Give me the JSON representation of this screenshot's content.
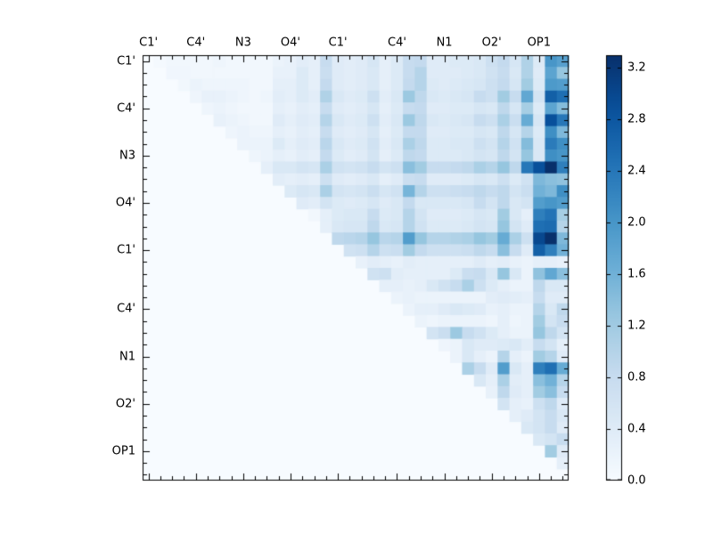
{
  "figure": {
    "background": "#ffffff",
    "plot_bg": "#f7fbff",
    "axis_color": "#000000"
  },
  "chart_data": {
    "type": "heatmap",
    "title": "",
    "xlabel": "",
    "ylabel": "",
    "matrix_size": 36,
    "colormap": "Blues",
    "vmin": 0.0,
    "vmax": 3.3,
    "tick_cells": [
      0,
      4,
      8,
      12,
      16,
      21,
      25,
      29,
      33
    ],
    "col_tick_labels": [
      "C1'",
      "C4'",
      "N3",
      "O4'",
      "C1'",
      "C4'",
      "N1",
      "O2'",
      "OP1"
    ],
    "row_tick_labels": [
      "C1'",
      "C4'",
      "N3",
      "O4'",
      "C1'",
      "C4'",
      "N1",
      "O2'",
      "OP1"
    ],
    "colorbar": {
      "tick_values": [
        0.0,
        0.4,
        0.8,
        1.2,
        1.6,
        2.0,
        2.4,
        2.8,
        3.2
      ],
      "tick_labels": [
        "0.0",
        "0.4",
        "0.8",
        "1.2",
        "1.6",
        "2.0",
        "2.4",
        "2.8",
        "3.2"
      ]
    },
    "values": [
      [
        0,
        0.05,
        0.1,
        0.1,
        0.1,
        0.1,
        0.15,
        0.1,
        0.1,
        0.1,
        0.1,
        0.2,
        0.25,
        0.35,
        0.3,
        0.8,
        0.4,
        0.35,
        0.4,
        0.55,
        0.3,
        0.45,
        0.8,
        0.85,
        0.4,
        0.4,
        0.45,
        0.45,
        0.5,
        0.7,
        0.85,
        0.55,
        1.05,
        0.45,
        2.0,
        1.85
      ],
      [
        0,
        0,
        0.12,
        0.12,
        0.1,
        0.1,
        0.1,
        0.1,
        0.1,
        0.1,
        0.1,
        0.25,
        0.25,
        0.45,
        0.3,
        0.75,
        0.4,
        0.35,
        0.4,
        0.5,
        0.3,
        0.45,
        0.8,
        1.0,
        0.4,
        0.4,
        0.4,
        0.45,
        0.5,
        0.65,
        0.8,
        0.5,
        1.05,
        0.4,
        1.8,
        1.3
      ],
      [
        0,
        0,
        0,
        0.1,
        0.2,
        0.15,
        0.15,
        0.15,
        0.15,
        0.1,
        0.1,
        0.3,
        0.3,
        0.45,
        0.3,
        0.85,
        0.4,
        0.35,
        0.4,
        0.5,
        0.3,
        0.45,
        0.85,
        1.0,
        0.45,
        0.4,
        0.45,
        0.5,
        0.55,
        0.7,
        0.85,
        0.55,
        1.2,
        0.45,
        1.95,
        1.9
      ],
      [
        0,
        0,
        0,
        0,
        0.15,
        0.25,
        0.25,
        0.2,
        0.15,
        0.1,
        0.15,
        0.35,
        0.3,
        0.45,
        0.35,
        1.05,
        0.5,
        0.4,
        0.45,
        0.7,
        0.35,
        0.5,
        1.25,
        0.9,
        0.5,
        0.45,
        0.5,
        0.55,
        0.8,
        0.7,
        1.2,
        0.8,
        1.75,
        0.6,
        2.7,
        2.5
      ],
      [
        0,
        0,
        0,
        0,
        0,
        0.15,
        0.2,
        0.15,
        0.1,
        0.1,
        0.1,
        0.3,
        0.25,
        0.35,
        0.3,
        0.8,
        0.4,
        0.35,
        0.4,
        0.55,
        0.3,
        0.45,
        0.8,
        0.85,
        0.4,
        0.4,
        0.45,
        0.45,
        0.55,
        0.5,
        0.9,
        0.55,
        1.15,
        0.45,
        1.8,
        1.45
      ],
      [
        0,
        0,
        0,
        0,
        0,
        0,
        0.25,
        0.2,
        0.15,
        0.1,
        0.1,
        0.4,
        0.3,
        0.4,
        0.35,
        1.0,
        0.5,
        0.4,
        0.45,
        0.7,
        0.35,
        0.5,
        1.25,
        0.9,
        0.5,
        0.45,
        0.5,
        0.55,
        0.8,
        0.7,
        1.1,
        0.75,
        1.7,
        0.55,
        2.9,
        2.4
      ],
      [
        0,
        0,
        0,
        0,
        0,
        0,
        0,
        0.15,
        0.2,
        0.15,
        0.15,
        0.3,
        0.25,
        0.35,
        0.3,
        0.8,
        0.4,
        0.35,
        0.4,
        0.55,
        0.3,
        0.45,
        0.85,
        0.85,
        0.4,
        0.4,
        0.45,
        0.45,
        0.55,
        0.5,
        0.9,
        0.55,
        1.0,
        0.45,
        2.1,
        1.5
      ],
      [
        0,
        0,
        0,
        0,
        0,
        0,
        0,
        0,
        0.2,
        0.2,
        0.2,
        0.45,
        0.3,
        0.4,
        0.35,
        0.95,
        0.5,
        0.4,
        0.45,
        0.65,
        0.35,
        0.5,
        1.1,
        0.9,
        0.45,
        0.45,
        0.5,
        0.5,
        0.7,
        0.6,
        1.0,
        0.65,
        1.45,
        0.5,
        2.35,
        2.1
      ],
      [
        0,
        0,
        0,
        0,
        0,
        0,
        0,
        0,
        0,
        0.15,
        0.2,
        0.3,
        0.25,
        0.35,
        0.3,
        0.85,
        0.45,
        0.35,
        0.4,
        0.6,
        0.3,
        0.45,
        0.9,
        0.85,
        0.45,
        0.45,
        0.45,
        0.5,
        0.6,
        0.55,
        0.9,
        0.6,
        1.3,
        0.5,
        2.1,
        2.0
      ],
      [
        0,
        0,
        0,
        0,
        0,
        0,
        0,
        0,
        0,
        0,
        0.3,
        0.5,
        0.5,
        0.6,
        0.55,
        1.1,
        0.65,
        0.6,
        0.65,
        0.8,
        0.6,
        0.7,
        1.4,
        1.2,
        0.8,
        0.8,
        0.85,
        0.9,
        1.1,
        1.0,
        1.3,
        0.9,
        2.4,
        2.9,
        3.3,
        2.3
      ],
      [
        0,
        0,
        0,
        0,
        0,
        0,
        0,
        0,
        0,
        0,
        0,
        0.35,
        0.3,
        0.35,
        0.3,
        0.7,
        0.4,
        0.35,
        0.4,
        0.5,
        0.3,
        0.4,
        0.75,
        0.8,
        0.4,
        0.4,
        0.4,
        0.45,
        0.55,
        0.5,
        0.7,
        0.45,
        0.65,
        1.5,
        1.4,
        1.35
      ],
      [
        0,
        0,
        0,
        0,
        0,
        0,
        0,
        0,
        0,
        0,
        0,
        0,
        0.45,
        0.55,
        0.5,
        1.1,
        0.6,
        0.55,
        0.6,
        0.75,
        0.55,
        0.65,
        1.55,
        1.0,
        0.7,
        0.7,
        0.75,
        0.8,
        0.9,
        0.8,
        0.9,
        0.6,
        0.75,
        1.6,
        1.5,
        2.1
      ],
      [
        0,
        0,
        0,
        0,
        0,
        0,
        0,
        0,
        0,
        0,
        0,
        0,
        0,
        0.4,
        0.35,
        0.6,
        0.45,
        0.4,
        0.45,
        0.55,
        0.4,
        0.5,
        0.85,
        0.5,
        0.5,
        0.5,
        0.5,
        0.55,
        0.8,
        0.6,
        0.9,
        0.5,
        0.6,
        1.9,
        2.0,
        1.9
      ],
      [
        0,
        0,
        0,
        0,
        0,
        0,
        0,
        0,
        0,
        0,
        0,
        0,
        0,
        0,
        0.1,
        0.3,
        0.45,
        0.5,
        0.5,
        0.8,
        0.45,
        0.5,
        1.0,
        0.6,
        0.4,
        0.4,
        0.4,
        0.45,
        0.55,
        0.5,
        1.2,
        0.5,
        0.3,
        2.3,
        2.45,
        1.15
      ],
      [
        0,
        0,
        0,
        0,
        0,
        0,
        0,
        0,
        0,
        0,
        0,
        0,
        0,
        0,
        0,
        0.3,
        0.5,
        0.55,
        0.55,
        0.9,
        0.5,
        0.55,
        1.0,
        0.65,
        0.45,
        0.45,
        0.45,
        0.5,
        0.6,
        0.55,
        1.3,
        0.6,
        0.4,
        2.5,
        2.55,
        1.0
      ],
      [
        0,
        0,
        0,
        0,
        0,
        0,
        0,
        0,
        0,
        0,
        0,
        0,
        0,
        0,
        0,
        0,
        0.9,
        0.95,
        1.0,
        1.3,
        0.95,
        1.0,
        1.9,
        1.3,
        1.0,
        1.0,
        1.05,
        1.1,
        1.3,
        1.2,
        1.7,
        1.1,
        0.7,
        3.0,
        3.3,
        1.5
      ],
      [
        0,
        0,
        0,
        0,
        0,
        0,
        0,
        0,
        0,
        0,
        0,
        0,
        0,
        0,
        0,
        0,
        0,
        0.65,
        0.7,
        1.0,
        0.7,
        0.75,
        1.2,
        0.85,
        0.7,
        0.7,
        0.7,
        0.75,
        0.9,
        0.8,
        1.4,
        0.8,
        0.4,
        2.7,
        2.3,
        1.6
      ],
      [
        0,
        0,
        0,
        0,
        0,
        0,
        0,
        0,
        0,
        0,
        0,
        0,
        0,
        0,
        0,
        0,
        0,
        0,
        0.25,
        0.35,
        0.3,
        0.25,
        0.35,
        0.3,
        0.3,
        0.3,
        0.3,
        0.3,
        0.4,
        0.3,
        0.35,
        0.25,
        0.2,
        0.3,
        0.3,
        0.25
      ],
      [
        0,
        0,
        0,
        0,
        0,
        0,
        0,
        0,
        0,
        0,
        0,
        0,
        0,
        0,
        0,
        0,
        0,
        0,
        0,
        0.65,
        0.7,
        0.35,
        0.3,
        0.3,
        0.3,
        0.3,
        0.45,
        0.75,
        0.8,
        0.5,
        1.3,
        0.5,
        0.2,
        1.35,
        1.75,
        1.4
      ],
      [
        0,
        0,
        0,
        0,
        0,
        0,
        0,
        0,
        0,
        0,
        0,
        0,
        0,
        0,
        0,
        0,
        0,
        0,
        0,
        0,
        0.3,
        0.3,
        0.25,
        0.3,
        0.5,
        0.65,
        0.8,
        1.1,
        0.7,
        0.45,
        0.3,
        0.2,
        0.2,
        0.9,
        0.5,
        0.5
      ],
      [
        0,
        0,
        0,
        0,
        0,
        0,
        0,
        0,
        0,
        0,
        0,
        0,
        0,
        0,
        0,
        0,
        0,
        0,
        0,
        0,
        0,
        0.2,
        0.25,
        0.2,
        0.2,
        0.2,
        0.2,
        0.2,
        0.2,
        0.35,
        0.4,
        0.35,
        0.3,
        0.8,
        0.4,
        0.4
      ],
      [
        0,
        0,
        0,
        0,
        0,
        0,
        0,
        0,
        0,
        0,
        0,
        0,
        0,
        0,
        0,
        0,
        0,
        0,
        0,
        0,
        0,
        0,
        0.2,
        0.3,
        0.3,
        0.4,
        0.5,
        0.45,
        0.4,
        0.25,
        0.3,
        0.2,
        0.2,
        1.0,
        0.5,
        0.9
      ],
      [
        0,
        0,
        0,
        0,
        0,
        0,
        0,
        0,
        0,
        0,
        0,
        0,
        0,
        0,
        0,
        0,
        0,
        0,
        0,
        0,
        0,
        0,
        0,
        0.2,
        0.15,
        0.2,
        0.2,
        0.2,
        0.2,
        0.15,
        0.3,
        0.15,
        0.2,
        1.2,
        0.6,
        0.8
      ],
      [
        0,
        0,
        0,
        0,
        0,
        0,
        0,
        0,
        0,
        0,
        0,
        0,
        0,
        0,
        0,
        0,
        0,
        0,
        0,
        0,
        0,
        0,
        0,
        0,
        0.6,
        0.75,
        1.25,
        0.8,
        0.65,
        0.45,
        0.3,
        0.2,
        0.2,
        1.3,
        0.9,
        0.6
      ],
      [
        0,
        0,
        0,
        0,
        0,
        0,
        0,
        0,
        0,
        0,
        0,
        0,
        0,
        0,
        0,
        0,
        0,
        0,
        0,
        0,
        0,
        0,
        0,
        0,
        0,
        0.15,
        0.2,
        0.5,
        0.4,
        0.4,
        0.45,
        0.5,
        0.35,
        0.8,
        0.6,
        0.3
      ],
      [
        0,
        0,
        0,
        0,
        0,
        0,
        0,
        0,
        0,
        0,
        0,
        0,
        0,
        0,
        0,
        0,
        0,
        0,
        0,
        0,
        0,
        0,
        0,
        0,
        0,
        0,
        0.2,
        0.5,
        0.3,
        0.2,
        1.0,
        0.3,
        0.2,
        1.2,
        1.0,
        0.4
      ],
      [
        0,
        0,
        0,
        0,
        0,
        0,
        0,
        0,
        0,
        0,
        0,
        0,
        0,
        0,
        0,
        0,
        0,
        0,
        0,
        0,
        0,
        0,
        0,
        0,
        0,
        0,
        0,
        1.1,
        0.8,
        0.4,
        1.9,
        0.5,
        0.3,
        2.3,
        2.5,
        1.7
      ],
      [
        0,
        0,
        0,
        0,
        0,
        0,
        0,
        0,
        0,
        0,
        0,
        0,
        0,
        0,
        0,
        0,
        0,
        0,
        0,
        0,
        0,
        0,
        0,
        0,
        0,
        0,
        0,
        0,
        0.5,
        0.3,
        1.1,
        0.35,
        0.3,
        1.4,
        1.6,
        1.0
      ],
      [
        0,
        0,
        0,
        0,
        0,
        0,
        0,
        0,
        0,
        0,
        0,
        0,
        0,
        0,
        0,
        0,
        0,
        0,
        0,
        0,
        0,
        0,
        0,
        0,
        0,
        0,
        0,
        0,
        0,
        0.25,
        0.9,
        0.4,
        0.3,
        1.2,
        1.4,
        0.8
      ],
      [
        0,
        0,
        0,
        0,
        0,
        0,
        0,
        0,
        0,
        0,
        0,
        0,
        0,
        0,
        0,
        0,
        0,
        0,
        0,
        0,
        0,
        0,
        0,
        0,
        0,
        0,
        0,
        0,
        0,
        0,
        0.6,
        0.3,
        0.25,
        0.7,
        0.9,
        0.4
      ],
      [
        0,
        0,
        0,
        0,
        0,
        0,
        0,
        0,
        0,
        0,
        0,
        0,
        0,
        0,
        0,
        0,
        0,
        0,
        0,
        0,
        0,
        0,
        0,
        0,
        0,
        0,
        0,
        0,
        0,
        0,
        0,
        0.3,
        0.4,
        0.6,
        0.8,
        0.5
      ],
      [
        0,
        0,
        0,
        0,
        0,
        0,
        0,
        0,
        0,
        0,
        0,
        0,
        0,
        0,
        0,
        0,
        0,
        0,
        0,
        0,
        0,
        0,
        0,
        0,
        0,
        0,
        0,
        0,
        0,
        0,
        0,
        0,
        0.5,
        0.6,
        0.8,
        0.4
      ],
      [
        0,
        0,
        0,
        0,
        0,
        0,
        0,
        0,
        0,
        0,
        0,
        0,
        0,
        0,
        0,
        0,
        0,
        0,
        0,
        0,
        0,
        0,
        0,
        0,
        0,
        0,
        0,
        0,
        0,
        0,
        0,
        0,
        0,
        0.5,
        0.6,
        0.8
      ],
      [
        0,
        0,
        0,
        0,
        0,
        0,
        0,
        0,
        0,
        0,
        0,
        0,
        0,
        0,
        0,
        0,
        0,
        0,
        0,
        0,
        0,
        0,
        0,
        0,
        0,
        0,
        0,
        0,
        0,
        0,
        0,
        0,
        0,
        0,
        1.2,
        0.4
      ],
      [
        0,
        0,
        0,
        0,
        0,
        0,
        0,
        0,
        0,
        0,
        0,
        0,
        0,
        0,
        0,
        0,
        0,
        0,
        0,
        0,
        0,
        0,
        0,
        0,
        0,
        0,
        0,
        0,
        0,
        0,
        0,
        0,
        0,
        0,
        0,
        0.3
      ],
      [
        0,
        0,
        0,
        0,
        0,
        0,
        0,
        0,
        0,
        0,
        0,
        0,
        0,
        0,
        0,
        0,
        0,
        0,
        0,
        0,
        0,
        0,
        0,
        0,
        0,
        0,
        0,
        0,
        0,
        0,
        0,
        0,
        0,
        0,
        0,
        0
      ]
    ]
  }
}
